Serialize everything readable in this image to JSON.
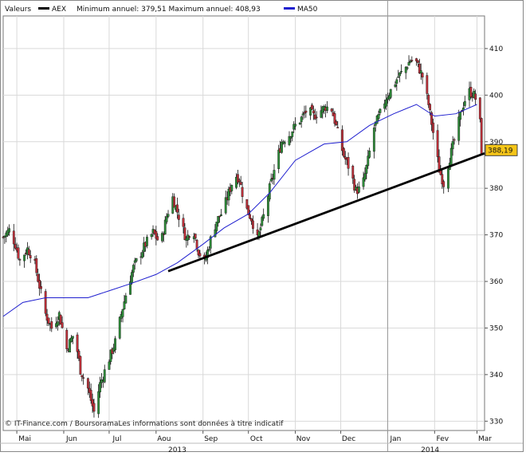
{
  "chart_data": {
    "type": "candlestick",
    "legend": {
      "prefix": "Valeurs",
      "series_label": "AEX",
      "stats_text": "Minimum annuel: 379,51 Maximum annuel: 408,93",
      "ma_label": "MA50",
      "placement": "top-left"
    },
    "footer": "© IT-Finance.com / BoursoramaLes informations sont données à titre indicatif",
    "yaxis": {
      "ticks": [
        330,
        340,
        350,
        360,
        370,
        380,
        390,
        400,
        410
      ],
      "tick_labels": [
        "330",
        "340",
        "350",
        "360",
        "370",
        "380",
        "390",
        "400",
        "410"
      ],
      "range": [
        328,
        417
      ],
      "position": "right"
    },
    "xaxis": {
      "range": [
        "2013-04-22",
        "2014-03-06"
      ],
      "months": [
        {
          "date": "2013-05-01",
          "label": "Mai"
        },
        {
          "date": "2013-06-01",
          "label": "Jun"
        },
        {
          "date": "2013-07-01",
          "label": "Jul"
        },
        {
          "date": "2013-08-01",
          "label": "Aou"
        },
        {
          "date": "2013-09-01",
          "label": "Sep"
        },
        {
          "date": "2013-10-01",
          "label": "Oct"
        },
        {
          "date": "2013-11-01",
          "label": "Nov"
        },
        {
          "date": "2013-12-01",
          "label": "Dec"
        },
        {
          "date": "2014-01-01",
          "label": "Jan"
        },
        {
          "date": "2014-02-01",
          "label": "Fev"
        },
        {
          "date": "2014-03-01",
          "label": "Mar"
        }
      ],
      "years": [
        {
          "date": "2013-08-15",
          "label": "2013"
        },
        {
          "date": "2014-01-29",
          "label": "2014"
        }
      ],
      "year_separator": "2014-01-01"
    },
    "last_value_label": "388,19",
    "last_value": 388.19,
    "grid": true,
    "trendline": {
      "start": {
        "date": "2013-08-09",
        "value": 362.2
      },
      "end": {
        "date": "2014-03-06",
        "value": 387.5
      }
    },
    "ma50_points": [
      [
        "2013-04-22",
        352.5
      ],
      [
        "2013-05-05",
        355.5
      ],
      [
        "2013-05-20",
        356.5
      ],
      [
        "2013-06-03",
        356.5
      ],
      [
        "2013-06-17",
        356.5
      ],
      [
        "2013-07-01",
        358.0
      ],
      [
        "2013-07-15",
        359.5
      ],
      [
        "2013-08-01",
        361.5
      ],
      [
        "2013-08-15",
        364.0
      ],
      [
        "2013-09-01",
        368.0
      ],
      [
        "2013-09-15",
        371.5
      ],
      [
        "2013-10-01",
        374.5
      ],
      [
        "2013-10-15",
        379.0
      ],
      [
        "2013-11-01",
        386.0
      ],
      [
        "2013-11-20",
        389.5
      ],
      [
        "2013-12-05",
        390.0
      ],
      [
        "2013-12-20",
        393.5
      ],
      [
        "2014-01-05",
        396.0
      ],
      [
        "2014-01-20",
        398.0
      ],
      [
        "2014-02-01",
        395.5
      ],
      [
        "2014-02-15",
        396.0
      ],
      [
        "2014-03-01",
        398.0
      ]
    ],
    "price_path": [
      [
        "2013-04-22",
        369.5
      ],
      [
        "2013-04-26",
        371.0
      ],
      [
        "2013-04-30",
        368.0
      ],
      [
        "2013-05-03",
        364.5
      ],
      [
        "2013-05-08",
        367.0
      ],
      [
        "2013-05-12",
        365.0
      ],
      [
        "2013-05-16",
        359.0
      ],
      [
        "2013-05-20",
        353.0
      ],
      [
        "2013-05-24",
        350.0
      ],
      [
        "2013-05-29",
        353.0
      ],
      [
        "2013-06-03",
        345.5
      ],
      [
        "2013-06-08",
        349.0
      ],
      [
        "2013-06-12",
        341.0
      ],
      [
        "2013-06-17",
        337.0
      ],
      [
        "2013-06-21",
        332.0
      ],
      [
        "2013-06-25",
        338.0
      ],
      [
        "2013-06-30",
        342.5
      ],
      [
        "2013-07-05",
        347.0
      ],
      [
        "2013-07-09",
        353.0
      ],
      [
        "2013-07-13",
        358.5
      ],
      [
        "2013-07-17",
        363.0
      ],
      [
        "2013-07-21",
        365.5
      ],
      [
        "2013-07-25",
        368.0
      ],
      [
        "2013-07-30",
        370.5
      ],
      [
        "2013-08-04",
        368.0
      ],
      [
        "2013-08-08",
        374.0
      ],
      [
        "2013-08-12",
        378.0
      ],
      [
        "2013-08-16",
        374.0
      ],
      [
        "2013-08-21",
        369.0
      ],
      [
        "2013-08-25",
        372.0
      ],
      [
        "2013-08-29",
        366.5
      ],
      [
        "2013-09-02",
        364.0
      ],
      [
        "2013-09-06",
        369.0
      ],
      [
        "2013-09-10",
        373.0
      ],
      [
        "2013-09-14",
        375.0
      ],
      [
        "2013-09-18",
        379.0
      ],
      [
        "2013-09-22",
        383.0
      ],
      [
        "2013-09-25",
        382.0
      ],
      [
        "2013-09-29",
        376.0
      ],
      [
        "2013-10-03",
        373.5
      ],
      [
        "2013-10-07",
        369.0
      ],
      [
        "2013-10-11",
        374.0
      ],
      [
        "2013-10-15",
        380.0
      ],
      [
        "2013-10-19",
        385.0
      ],
      [
        "2013-10-23",
        390.0
      ],
      [
        "2013-10-28",
        391.5
      ],
      [
        "2013-11-01",
        393.5
      ],
      [
        "2013-11-05",
        395.0
      ],
      [
        "2013-11-09",
        397.0
      ],
      [
        "2013-11-13",
        395.5
      ],
      [
        "2013-11-17",
        396.5
      ],
      [
        "2013-11-21",
        397.5
      ],
      [
        "2013-11-25",
        397.0
      ],
      [
        "2013-11-29",
        392.0
      ],
      [
        "2013-12-03",
        387.0
      ],
      [
        "2013-12-07",
        384.0
      ],
      [
        "2013-12-11",
        379.5
      ],
      [
        "2013-12-15",
        380.0
      ],
      [
        "2013-12-19",
        386.0
      ],
      [
        "2013-12-23",
        393.0
      ],
      [
        "2013-12-27",
        396.0
      ],
      [
        "2013-12-31",
        399.5
      ],
      [
        "2014-01-04",
        401.5
      ],
      [
        "2014-01-08",
        404.0
      ],
      [
        "2014-01-12",
        405.5
      ],
      [
        "2014-01-16",
        407.5
      ],
      [
        "2014-01-20",
        407.0
      ],
      [
        "2014-01-24",
        404.0
      ],
      [
        "2014-01-28",
        398.0
      ],
      [
        "2014-02-01",
        390.0
      ],
      [
        "2014-02-04",
        384.0
      ],
      [
        "2014-02-07",
        381.0
      ],
      [
        "2014-02-11",
        386.5
      ],
      [
        "2014-02-15",
        391.5
      ],
      [
        "2014-02-19",
        397.0
      ],
      [
        "2014-02-23",
        401.0
      ],
      [
        "2014-02-27",
        400.0
      ],
      [
        "2014-03-01",
        398.5
      ],
      [
        "2014-03-03",
        394.0
      ],
      [
        "2014-03-04",
        388.19
      ]
    ]
  }
}
